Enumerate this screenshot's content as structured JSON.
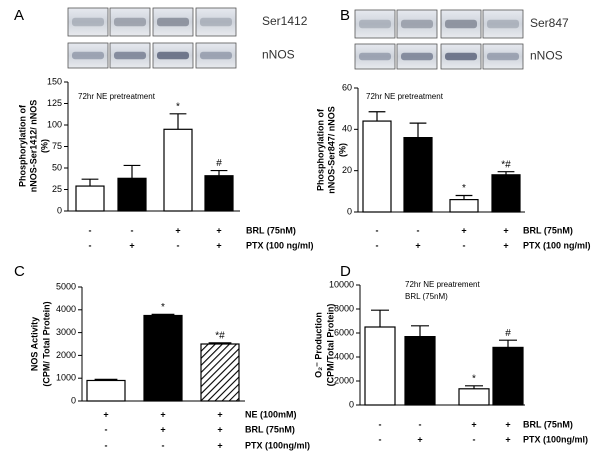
{
  "chart_data": [
    {
      "type": "bar",
      "panel": "A",
      "blot_labels": [
        "Ser1412",
        "nNOS"
      ],
      "annotation": [
        "72hr NE pretreatment"
      ],
      "y_label": [
        "Phosphorylation of",
        "nNOS-Ser1412/ nNOS",
        "(%)"
      ],
      "ylim": [
        0,
        150
      ],
      "yticks": [
        0,
        25,
        50,
        75,
        100,
        125,
        150
      ],
      "values": [
        29,
        38,
        95,
        41
      ],
      "errors": [
        8,
        15,
        18,
        6
      ],
      "significance": [
        null,
        null,
        "*",
        "#"
      ],
      "fills": [
        "#ffffff",
        "#000000",
        "#ffffff",
        "#000000"
      ],
      "conditions": [
        {
          "name": "BRL (75nM)",
          "marks": [
            "-",
            "-",
            "+",
            "+"
          ]
        },
        {
          "name": "PTX (100 ng/ml)",
          "marks": [
            "-",
            "+",
            "-",
            "+"
          ]
        }
      ]
    },
    {
      "type": "bar",
      "panel": "B",
      "blot_labels": [
        "Ser847",
        "nNOS"
      ],
      "annotation": [
        "72hr NE pretreatment"
      ],
      "y_label": [
        "Phosphorylation of",
        "nNOS-Ser847/ nNOS",
        "(%)"
      ],
      "ylim": [
        0,
        60
      ],
      "yticks": [
        0,
        20,
        40,
        60
      ],
      "values": [
        44,
        36,
        6,
        18
      ],
      "errors": [
        4.5,
        7,
        2,
        1.5
      ],
      "significance": [
        null,
        null,
        "*",
        "*#"
      ],
      "fills": [
        "#ffffff",
        "#000000",
        "#ffffff",
        "#000000"
      ],
      "conditions": [
        {
          "name": "BRL (75nM)",
          "marks": [
            "-",
            "-",
            "+",
            "+"
          ]
        },
        {
          "name": "PTX (100 ng/ml)",
          "marks": [
            "-",
            "+",
            "-",
            "+"
          ]
        }
      ]
    },
    {
      "type": "bar",
      "panel": "C",
      "y_label": [
        "NOS Activity",
        "(CPM/ Total Protein)"
      ],
      "ylim": [
        0,
        5000
      ],
      "yticks": [
        0,
        1000,
        2000,
        3000,
        4000,
        5000
      ],
      "values": [
        900,
        3750,
        2500
      ],
      "errors": [
        50,
        50,
        50
      ],
      "significance": [
        null,
        "*",
        "*#"
      ],
      "fills": [
        "#ffffff",
        "#000000",
        "hatch"
      ],
      "conditions": [
        {
          "name": "NE (100mM)",
          "marks": [
            "+",
            "+",
            "+"
          ]
        },
        {
          "name": "BRL (75nM)",
          "marks": [
            "-",
            "+",
            "+"
          ]
        },
        {
          "name": "PTX (100ng/ml)",
          "marks": [
            "-",
            "-",
            "+"
          ]
        }
      ]
    },
    {
      "type": "bar",
      "panel": "D",
      "annotation": [
        "72hr NE preatrement",
        "BRL (75nM)"
      ],
      "y_label": [
        "O₂⁻ Production",
        "(CPM/Total Protein)"
      ],
      "ylim": [
        0,
        10000
      ],
      "yticks": [
        0,
        2000,
        4000,
        6000,
        8000,
        10000
      ],
      "values": [
        6500,
        5700,
        1350,
        4800
      ],
      "errors": [
        1400,
        900,
        250,
        600
      ],
      "significance": [
        null,
        null,
        "*",
        "#"
      ],
      "fills": [
        "#ffffff",
        "#000000",
        "#ffffff",
        "#000000"
      ],
      "conditions": [
        {
          "name": "BRL (75nM)",
          "marks": [
            "-",
            "-",
            "+",
            "+"
          ]
        },
        {
          "name": "PTX (100ng/ml)",
          "marks": [
            "-",
            "+",
            "-",
            "+"
          ]
        }
      ]
    }
  ]
}
